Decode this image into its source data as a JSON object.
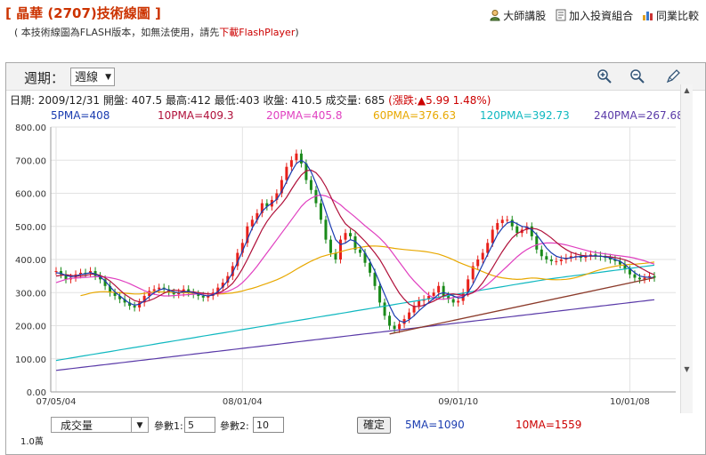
{
  "header": {
    "title": "晶華 (2707)技術線圖",
    "bracket_open": "[",
    "bracket_close": "]",
    "subtitle_prefix": "( 本技術線圖為FLASH版本，如無法使用，請先",
    "subtitle_link": "下載FlashPlayer",
    "subtitle_suffix": ")"
  },
  "toplinks": [
    {
      "label": "大師講股",
      "icon": "person-icon"
    },
    {
      "label": "加入投資組合",
      "icon": "document-icon"
    },
    {
      "label": "同業比較",
      "icon": "bar-chart-icon"
    }
  ],
  "toolbar": {
    "period_label": "週期：",
    "period_value": "週線",
    "zoom_in_icon": "zoom-in-icon",
    "zoom_out_icon": "zoom-out-icon",
    "draw_icon": "pen-icon"
  },
  "info": {
    "date_label": "日期:",
    "date": "2009/12/31",
    "open_label": "開盤:",
    "open": "407.5",
    "high_label": "最高:",
    "high": "412",
    "low_label": "最低:",
    "low": "403",
    "close_label": "收盤:",
    "close": "410.5",
    "volume_label": "成交量:",
    "volume": "685",
    "change_label": "(漲跌:",
    "change_value": "▲5.99 1.48%)"
  },
  "ma_legend": [
    {
      "label": "5PMA=408",
      "color": "#1a3cb0"
    },
    {
      "label": "10PMA=409.3",
      "color": "#b0103a"
    },
    {
      "label": "20PMA=405.8",
      "color": "#e040c0"
    },
    {
      "label": "60PMA=376.63",
      "color": "#e8a800"
    },
    {
      "label": "120PMA=392.73",
      "color": "#10b8c0"
    },
    {
      "label": "240PMA=267.68",
      "color": "#5a3aa8"
    }
  ],
  "chart_data": {
    "type": "line",
    "y_ticks": [
      "800.00",
      "700.00",
      "600.00",
      "500.00",
      "400.00",
      "300.00",
      "200.00",
      "100.00",
      "0.00"
    ],
    "ylim": [
      0,
      800
    ],
    "x_ticks": [
      "07/05/04",
      "08/01/04",
      "09/01/10",
      "10/01/08"
    ],
    "colors": {
      "up_candle": "#e8201a",
      "down_candle": "#1a8a1a",
      "ma5": "#1a3cb0",
      "ma10": "#b0103a",
      "ma20": "#e040c0",
      "ma60": "#e8a800",
      "ma120": "#10b8c0",
      "ma240": "#5a3aa8",
      "trendline": "#8b3a2a"
    },
    "price_series": [
      365,
      355,
      340,
      345,
      355,
      360,
      358,
      365,
      350,
      340,
      320,
      300,
      290,
      280,
      270,
      260,
      255,
      270,
      290,
      305,
      310,
      315,
      310,
      300,
      295,
      300,
      310,
      300,
      295,
      290,
      285,
      290,
      300,
      315,
      330,
      350,
      380,
      420,
      450,
      500,
      520,
      540,
      570,
      560,
      580,
      600,
      640,
      680,
      700,
      720,
      690,
      640,
      610,
      570,
      520,
      460,
      420,
      400,
      460,
      480,
      470,
      430,
      420,
      390,
      360,
      320,
      270,
      230,
      200,
      190,
      205,
      220,
      240,
      260,
      275,
      280,
      290,
      300,
      320,
      290,
      280,
      270,
      275,
      300,
      340,
      380,
      400,
      420,
      450,
      490,
      510,
      520,
      520,
      500,
      480,
      490,
      500,
      470,
      430,
      410,
      400,
      395,
      395,
      400,
      405,
      410,
      410,
      405,
      410,
      415,
      412,
      408,
      405,
      400,
      395,
      385,
      370,
      355,
      345,
      340,
      345,
      350,
      345
    ],
    "ma_series": {
      "ma5": [
        360,
        358,
        352,
        348,
        350,
        355,
        357,
        360,
        356,
        348,
        335,
        318,
        302,
        290,
        278,
        268,
        262,
        265,
        275,
        288,
        300,
        308,
        312,
        308,
        302,
        300,
        302,
        303,
        300,
        296,
        292,
        290,
        293,
        303,
        318,
        336,
        360,
        392,
        425,
        460,
        495,
        520,
        545,
        560,
        570,
        582,
        605,
        635,
        665,
        690,
        700,
        690,
        665,
        630,
        590,
        545,
        500,
        460,
        445,
        450,
        460,
        455,
        440,
        420,
        395,
        365,
        330,
        295,
        260,
        230,
        215,
        210,
        218,
        230,
        245,
        258,
        270,
        282,
        295,
        300,
        296,
        290,
        284,
        286,
        300,
        325,
        355,
        385,
        415,
        445,
        475,
        495,
        510,
        515,
        508,
        500,
        498,
        490,
        475,
        455,
        435,
        420,
        410,
        405,
        403,
        405,
        408,
        409,
        410,
        411,
        411,
        410,
        408,
        405,
        400,
        395,
        385,
        372,
        360,
        350,
        347,
        346,
        345
      ],
      "ma10": [
        350,
        352,
        354,
        352,
        350,
        350,
        352,
        355,
        356,
        352,
        345,
        335,
        322,
        308,
        295,
        285,
        276,
        272,
        272,
        276,
        282,
        290,
        298,
        305,
        308,
        306,
        304,
        303,
        302,
        300,
        298,
        296,
        295,
        298,
        305,
        315,
        328,
        348,
        372,
        400,
        430,
        460,
        490,
        515,
        535,
        552,
        568,
        588,
        612,
        635,
        655,
        668,
        670,
        662,
        645,
        620,
        590,
        558,
        530,
        508,
        495,
        485,
        470,
        455,
        438,
        420,
        400,
        375,
        348,
        322,
        298,
        280,
        265,
        258,
        258,
        262,
        268,
        274,
        282,
        290,
        295,
        296,
        294,
        292,
        294,
        300,
        312,
        330,
        352,
        375,
        400,
        424,
        446,
        465,
        478,
        486,
        492,
        494,
        492,
        486,
        476,
        465,
        452,
        440,
        430,
        422,
        417,
        413,
        411,
        410,
        410,
        410,
        409,
        408,
        406,
        403,
        399,
        393,
        385,
        376,
        368,
        360,
        354
      ],
      "ma20": [
        330,
        335,
        340,
        343,
        344,
        345,
        346,
        347,
        348,
        348,
        347,
        345,
        342,
        338,
        333,
        327,
        320,
        313,
        306,
        300,
        295,
        292,
        290,
        290,
        291,
        292,
        293,
        294,
        295,
        296,
        296,
        296,
        296,
        297,
        300,
        304,
        310,
        318,
        330,
        345,
        362,
        380,
        400,
        420,
        440,
        460,
        480,
        500,
        520,
        540,
        560,
        575,
        585,
        592,
        595,
        592,
        585,
        575,
        565,
        552,
        540,
        528,
        515,
        502,
        490,
        478,
        465,
        450,
        432,
        412,
        392,
        372,
        352,
        335,
        320,
        305,
        292,
        284,
        280,
        280,
        282,
        285,
        288,
        291,
        295,
        300,
        306,
        314,
        325,
        338,
        352,
        366,
        380,
        394,
        408,
        420,
        430,
        438,
        444,
        448,
        450,
        450,
        449,
        447,
        444,
        440,
        436,
        432,
        428,
        424,
        421,
        419,
        417,
        415,
        413,
        411,
        409,
        407,
        404,
        400,
        396,
        391,
        386
      ],
      "ma60": [
        null,
        null,
        null,
        null,
        null,
        null,
        null,
        null,
        null,
        null,
        null,
        null,
        null,
        null,
        null,
        null,
        null,
        null,
        null,
        null,
        null,
        null,
        null,
        null,
        null,
        null,
        null,
        null,
        null,
        null,
        null,
        null,
        null,
        null,
        null,
        null,
        null,
        null,
        null,
        null,
        null,
        null,
        null,
        null,
        null,
        null,
        null,
        null,
        null,
        null,
        null,
        null,
        null,
        null,
        null,
        null,
        null,
        null,
        null,
        null,
        null,
        null,
        null,
        null,
        null,
        null,
        null,
        null,
        null,
        null,
        null,
        null,
        null,
        null,
        null,
        null,
        null,
        null,
        null,
        null,
        null,
        null,
        null,
        null,
        null,
        null,
        null,
        null,
        null,
        null,
        null,
        null,
        null,
        null,
        null,
        null,
        null,
        null,
        null,
        null,
        null,
        null,
        null,
        null,
        null,
        null,
        null,
        null,
        null,
        null,
        null,
        null,
        null,
        null,
        null,
        null,
        null,
        null,
        null,
        null,
        null,
        null,
        null
      ]
    },
    "trendline": [
      [
        68,
        175
      ],
      [
        122,
        345
      ]
    ],
    "annotation_count": 123
  },
  "bottom": {
    "indicator_select": "成交量",
    "param1_label": "參數1:",
    "param1_value": "5",
    "param2_label": "參數2:",
    "param2_value": "10",
    "confirm_label": "確定",
    "ma5_label": "5MA=1090",
    "ma10_label": "10MA=1559",
    "vol_axis_label": "1.0萬"
  }
}
